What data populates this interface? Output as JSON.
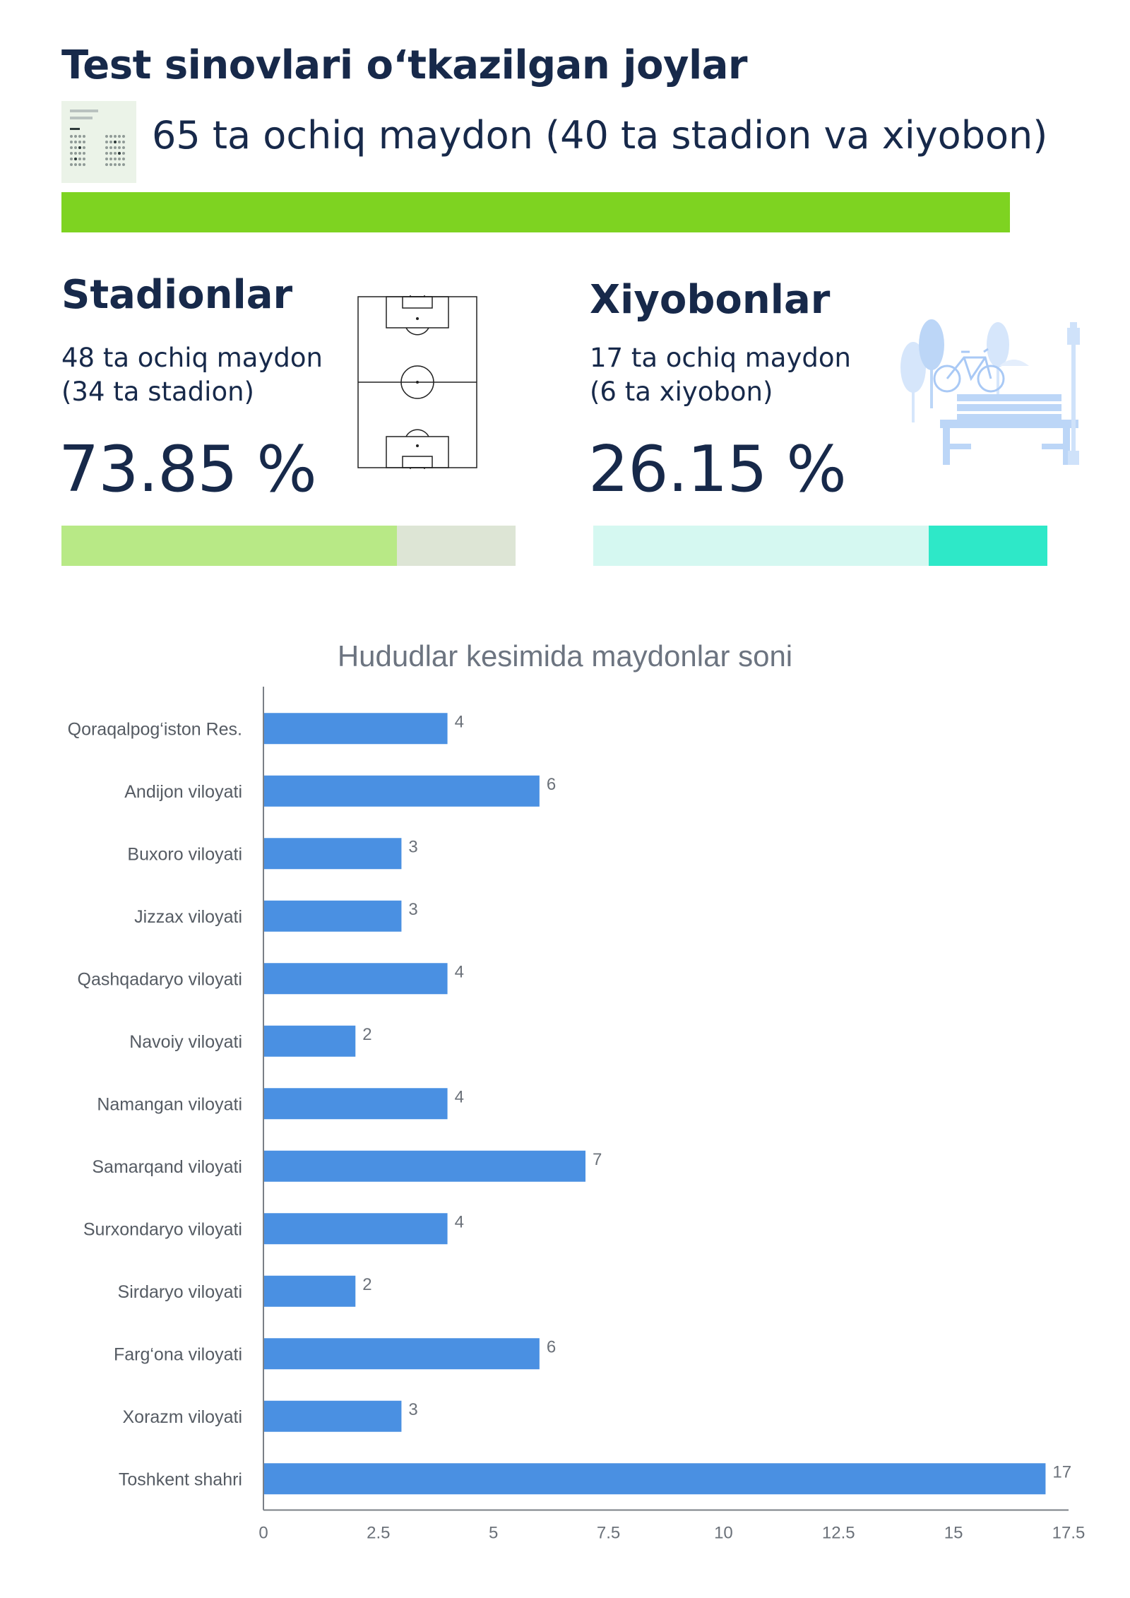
{
  "header": {
    "title": "Test sinovlari o‘tkazilgan joylar",
    "summary": "65 ta ochiq maydon (40 ta stadion va xiyobon)"
  },
  "stadiums": {
    "title": "Stadionlar",
    "line1": "48 ta ochiq maydon",
    "line2": "(34 ta stadion)",
    "percent": "73.85 %",
    "share": 0.7385
  },
  "alleys": {
    "title": "Xiyobonlar",
    "line1": "17 ta ochiq maydon",
    "line2": "(6 ta xiyobon)",
    "percent": "26.15 %",
    "share": 0.2615
  },
  "colors": {
    "total_bar": "#7ed321",
    "stadium_fill": "#b8e986",
    "stadium_track": "#dde5d5",
    "alley_fill": "#2ee8c8",
    "alley_track": "#d5f8f1",
    "chart_bar": "#4a90e2"
  },
  "icons": [
    "document-table-icon",
    "football-field-icon",
    "park-bench-icon"
  ],
  "chart_data": {
    "type": "bar",
    "orientation": "horizontal",
    "title": "Hududlar kesimida maydonlar soni",
    "categories": [
      "Qoraqalpog‘iston Res.",
      "Andijon viloyati",
      "Buxoro viloyati",
      "Jizzax viloyati",
      "Qashqadaryo viloyati",
      "Navoiy viloyati",
      "Namangan viloyati",
      "Samarqand viloyati",
      "Surxondaryo viloyati",
      "Sirdaryo viloyati",
      "Farg‘ona viloyati",
      "Xorazm viloyati",
      "Toshkent shahri"
    ],
    "values": [
      4,
      6,
      3,
      3,
      4,
      2,
      4,
      7,
      4,
      2,
      6,
      3,
      17
    ],
    "xlim": [
      0,
      17.5
    ],
    "xticks": [
      "0",
      "2.5",
      "5",
      "7.5",
      "10",
      "12.5",
      "15",
      "17.5"
    ],
    "grid": false
  }
}
